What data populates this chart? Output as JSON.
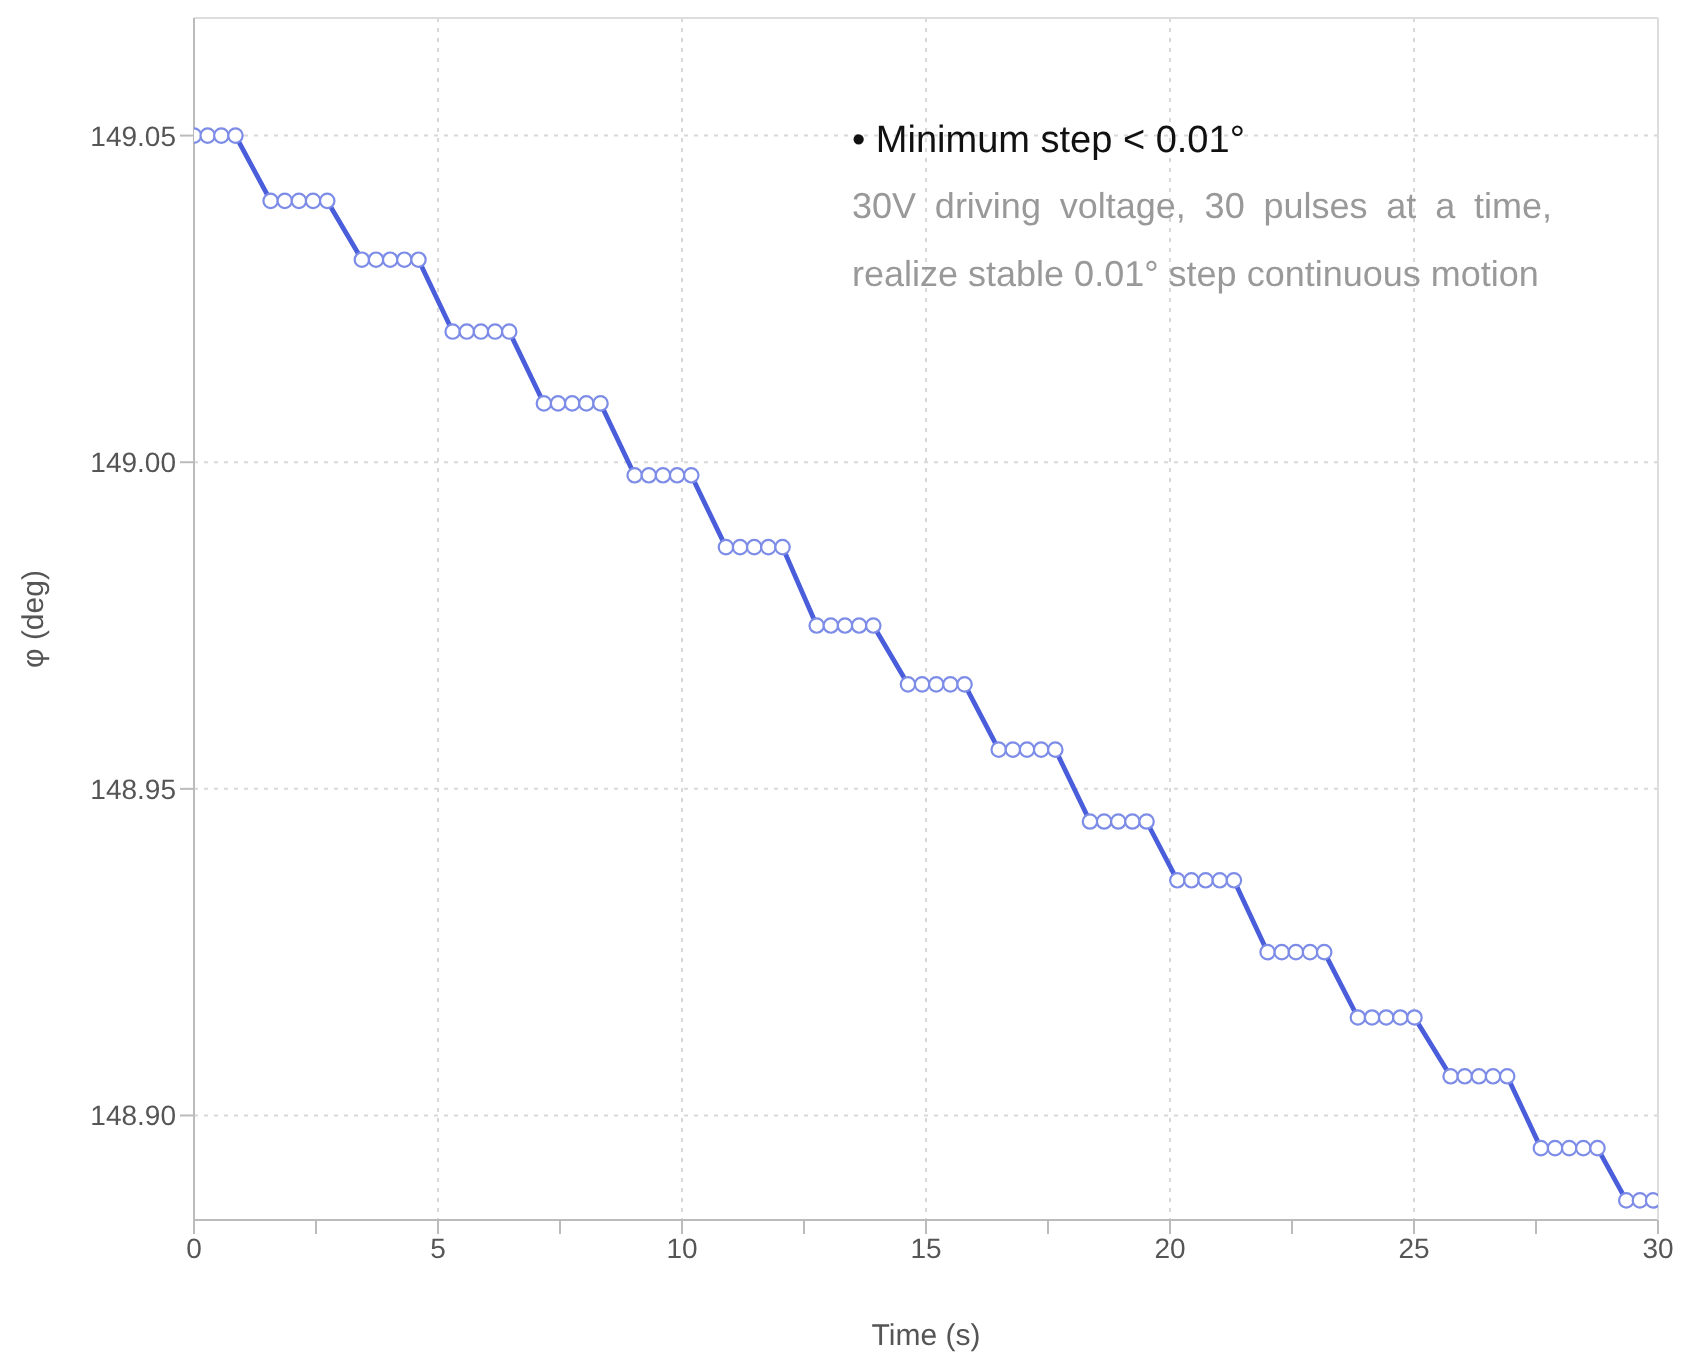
{
  "chart_data": {
    "type": "line",
    "xlabel": "Time (s)",
    "ylabel": "φ (deg)",
    "annotations": [
      "• Minimum step < 0.01°",
      "30V driving voltage, 30 pulses at a time, realize stable 0.01° step continuous motion"
    ],
    "xlim": [
      0,
      30
    ],
    "ylim": [
      148.884,
      149.068
    ],
    "xticks": [
      0,
      {
        "value": 2.5,
        "label": null
      },
      5,
      {
        "value": 7.5,
        "label": null
      },
      10,
      {
        "value": 12.5,
        "label": null
      },
      15,
      {
        "value": 17.5,
        "label": null
      },
      20,
      {
        "value": 22.5,
        "label": null
      },
      25,
      {
        "value": 27.5,
        "label": null
      },
      30
    ],
    "yticks": [
      {
        "value": 148.9,
        "label": "148.90"
      },
      148.95,
      {
        "value": 149,
        "label": "149.00"
      },
      149.05
    ],
    "grid": true,
    "marker": "circle",
    "line_style": "solid",
    "legend": false,
    "series": [
      {
        "color": "#4a5ddb",
        "x": [
          0,
          0.28,
          0.56,
          0.85,
          1.57,
          1.86,
          2.15,
          2.44,
          2.73,
          3.44,
          3.73,
          4.02,
          4.31,
          4.6,
          5.3,
          5.59,
          5.88,
          6.17,
          6.46,
          7.17,
          7.46,
          7.75,
          8.04,
          8.33,
          9.03,
          9.32,
          9.61,
          9.9,
          10.19,
          10.9,
          11.19,
          11.48,
          11.77,
          12.06,
          12.76,
          13.05,
          13.34,
          13.63,
          13.92,
          14.63,
          14.92,
          15.21,
          15.5,
          15.79,
          16.49,
          16.78,
          17.07,
          17.36,
          17.65,
          18.36,
          18.65,
          18.94,
          19.23,
          19.52,
          20.15,
          20.44,
          20.73,
          21.02,
          21.31,
          22.0,
          22.29,
          22.58,
          22.87,
          23.16,
          23.85,
          24.14,
          24.43,
          24.72,
          25.01,
          25.75,
          26.04,
          26.33,
          26.62,
          26.91,
          27.6,
          27.89,
          28.18,
          28.47,
          28.76,
          29.35,
          29.63,
          29.9
        ],
        "values": [
          149.05,
          149.05,
          149.05,
          149.05,
          149.04,
          149.04,
          149.04,
          149.04,
          149.04,
          149.031,
          149.031,
          149.031,
          149.031,
          149.031,
          149.02,
          149.02,
          149.02,
          149.02,
          149.02,
          149.009,
          149.009,
          149.009,
          149.009,
          149.009,
          148.998,
          148.998,
          148.998,
          148.998,
          148.998,
          148.987,
          148.987,
          148.987,
          148.987,
          148.987,
          148.975,
          148.975,
          148.975,
          148.975,
          148.975,
          148.966,
          148.966,
          148.966,
          148.966,
          148.966,
          148.956,
          148.956,
          148.956,
          148.956,
          148.956,
          148.945,
          148.945,
          148.945,
          148.945,
          148.945,
          148.936,
          148.936,
          148.936,
          148.936,
          148.936,
          148.925,
          148.925,
          148.925,
          148.925,
          148.925,
          148.915,
          148.915,
          148.915,
          148.915,
          148.915,
          148.906,
          148.906,
          148.906,
          148.906,
          148.906,
          148.895,
          148.895,
          148.895,
          148.895,
          148.895,
          148.887,
          148.887,
          148.887
        ]
      }
    ]
  }
}
